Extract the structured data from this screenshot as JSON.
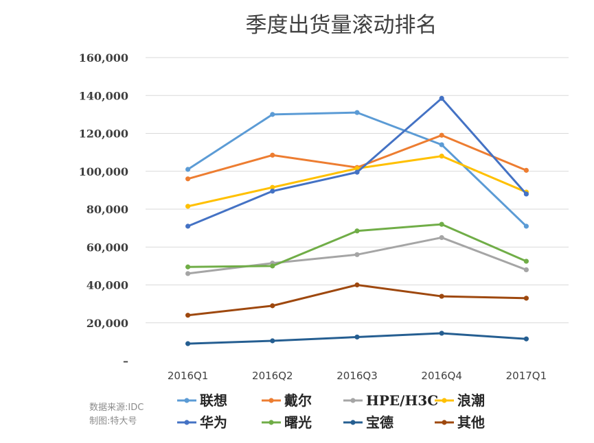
{
  "chart_data": {
    "type": "line",
    "title": "季度出货量滚动排名",
    "categories": [
      "2016Q1",
      "2016Q2",
      "2016Q3",
      "2016Q4",
      "2017Q1"
    ],
    "ylim": [
      0,
      160000
    ],
    "yticks": [
      "–",
      "20,000",
      "40,000",
      "60,000",
      "80,000",
      "100,000",
      "120,000",
      "140,000",
      "160,000"
    ],
    "grid": true,
    "legend_position": "bottom",
    "series": [
      {
        "name": "联想",
        "color": "#5b9bd5",
        "values": [
          101000,
          130000,
          131000,
          114000,
          71000
        ]
      },
      {
        "name": "戴尔",
        "color": "#ed7d31",
        "values": [
          96000,
          108500,
          102000,
          119000,
          100500
        ]
      },
      {
        "name": "HPE/H3C",
        "color": "#a5a5a5",
        "values": [
          46000,
          51500,
          56000,
          65000,
          48000
        ]
      },
      {
        "name": "浪潮",
        "color": "#ffc000",
        "values": [
          81500,
          91500,
          101500,
          108000,
          89000
        ]
      },
      {
        "name": "华为",
        "color": "#4472c4",
        "values": [
          71000,
          89500,
          99500,
          138500,
          88000
        ]
      },
      {
        "name": "曙光",
        "color": "#70ad47",
        "values": [
          49500,
          50000,
          68500,
          72000,
          52500
        ]
      },
      {
        "name": "宝德",
        "color": "#255e91",
        "values": [
          9000,
          10500,
          12500,
          14500,
          11500
        ]
      },
      {
        "name": "其他",
        "color": "#9e480e",
        "values": [
          24000,
          29000,
          40000,
          34000,
          33000
        ]
      }
    ]
  },
  "source_lines": [
    "数据来源:IDC",
    "制图:特大号"
  ]
}
